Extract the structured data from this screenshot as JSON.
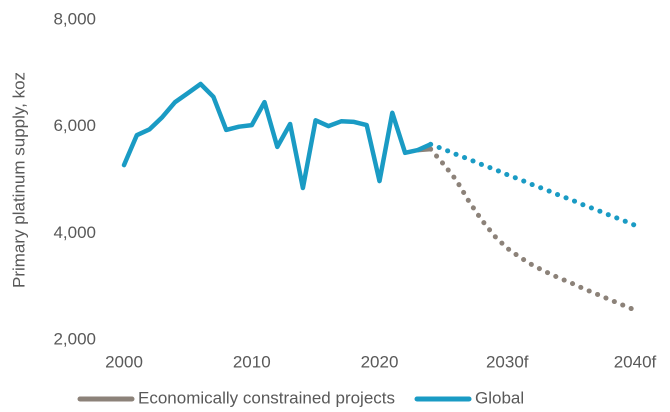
{
  "chart_data": {
    "type": "line",
    "y_label": "Primary platinum supply, koz",
    "x": [
      2000,
      2001,
      2002,
      2003,
      2004,
      2005,
      2006,
      2007,
      2008,
      2009,
      2010,
      2011,
      2012,
      2013,
      2014,
      2015,
      2016,
      2017,
      2018,
      2019,
      2020,
      2021,
      2022,
      2023,
      2024,
      2025,
      2026,
      2027,
      2028,
      2029,
      2030,
      2031,
      2032,
      2033,
      2034,
      2035,
      2036,
      2037,
      2038,
      2039,
      2040
    ],
    "xlim": [
      2000,
      2040
    ],
    "xticks": [
      2000,
      2010,
      2020,
      {
        "value": 2030,
        "label": "2030f"
      },
      {
        "value": 2040,
        "label": "2040f"
      }
    ],
    "ylim": [
      2000,
      8000
    ],
    "yticks": [
      {
        "value": 2000,
        "label": "2,000"
      },
      {
        "value": 4000,
        "label": "4,000"
      },
      {
        "value": 6000,
        "label": "6,000"
      },
      {
        "value": 8000,
        "label": "8,000"
      }
    ],
    "forecast_from": 2024,
    "legend": "bottom",
    "series": [
      {
        "name": "Economically constrained projects",
        "color": "#8c8279",
        "values": [
          null,
          null,
          null,
          null,
          null,
          null,
          null,
          null,
          null,
          null,
          null,
          null,
          null,
          null,
          null,
          null,
          null,
          null,
          null,
          null,
          null,
          null,
          null,
          5560,
          5580,
          5300,
          5000,
          4600,
          4250,
          3950,
          3720,
          3550,
          3400,
          3280,
          3170,
          3070,
          2960,
          2860,
          2760,
          2660,
          2560
        ]
      },
      {
        "name": "Global",
        "color": "#1a9bc4",
        "values": [
          5280,
          5840,
          5950,
          6180,
          6460,
          6630,
          6800,
          6560,
          5940,
          6000,
          6030,
          6460,
          5620,
          6050,
          4850,
          6120,
          6010,
          6100,
          6090,
          6030,
          4980,
          6260,
          5510,
          5560,
          5670,
          5580,
          5480,
          5390,
          5290,
          5200,
          5100,
          5010,
          4910,
          4820,
          4720,
          4630,
          4530,
          4440,
          4340,
          4250,
          4150
        ]
      }
    ]
  }
}
